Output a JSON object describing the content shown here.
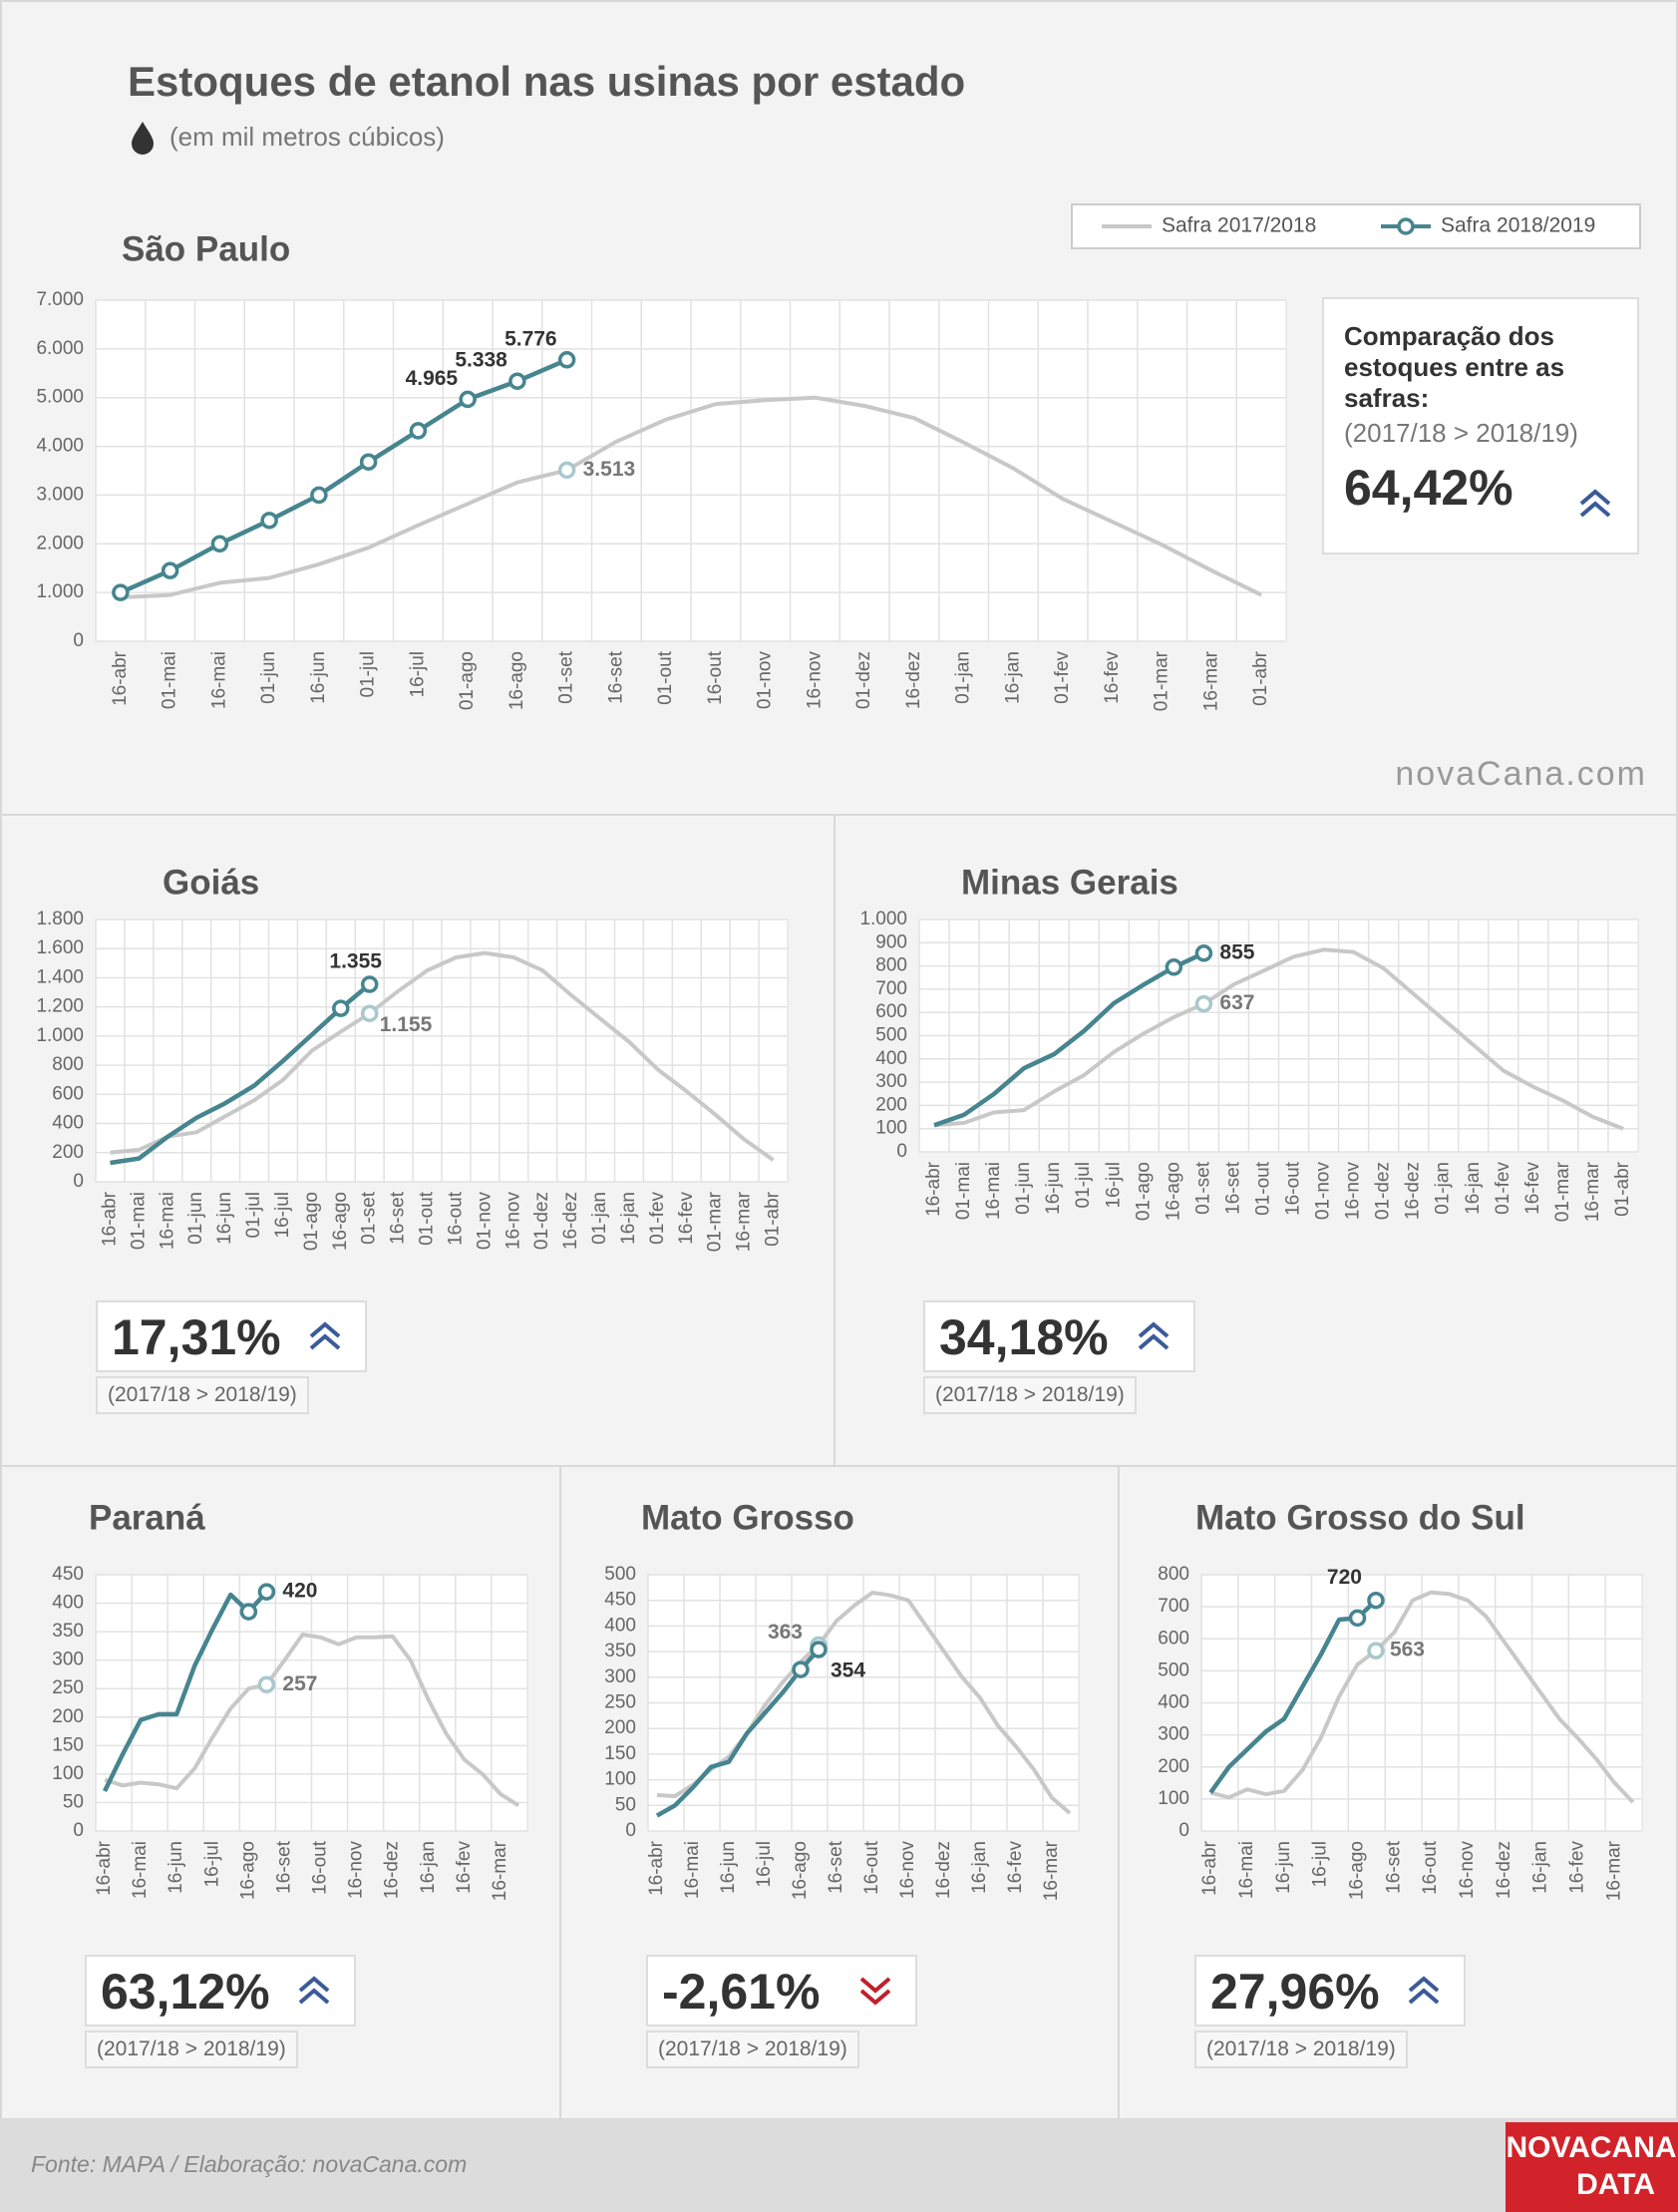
{
  "header": {
    "title": "Estoques de etanol nas usinas por estado",
    "subtitle": "(em mil metros cúbicos)"
  },
  "watermark": "novaCana.com",
  "footer": {
    "source": "Fonte: MAPA  / Elaboração: novaCana.com",
    "logo_top": "NOVACANA",
    "logo_bottom": "DATA"
  },
  "chart_data": [
    {
      "type": "line",
      "title": "São Paulo",
      "legend": "top-right",
      "grid": true,
      "categories": [
        "16-abr",
        "01-mai",
        "16-mai",
        "01-jun",
        "16-jun",
        "01-jul",
        "16-jul",
        "01-ago",
        "16-ago",
        "01-set",
        "16-set",
        "01-out",
        "16-out",
        "01-nov",
        "16-nov",
        "01-dez",
        "16-dez",
        "01-jan",
        "16-jan",
        "01-fev",
        "16-fev",
        "01-mar",
        "16-mar",
        "01-abr"
      ],
      "series": [
        {
          "name": "Safra 2017/2018",
          "color": "#c8c8c8",
          "markers": "labeled",
          "values": [
            900,
            950,
            1200,
            1300,
            1580,
            1920,
            2380,
            2820,
            3260,
            3513,
            4100,
            4550,
            4870,
            4950,
            5000,
            4830,
            4580,
            4080,
            3550,
            2920,
            2450,
            1980,
            1450,
            950
          ],
          "value_labels": [
            null,
            null,
            null,
            null,
            null,
            null,
            null,
            null,
            null,
            "3.513",
            null,
            null,
            null,
            null,
            null,
            null,
            null,
            null,
            null,
            null,
            null,
            null,
            null,
            null
          ]
        },
        {
          "name": "Safra 2018/2019",
          "color": "#46858f",
          "markers": "all",
          "values": [
            1000,
            1450,
            2000,
            2480,
            3000,
            3680,
            4320,
            4965,
            5338,
            5776,
            null,
            null,
            null,
            null,
            null,
            null,
            null,
            null,
            null,
            null,
            null,
            null,
            null,
            null
          ],
          "value_labels": [
            null,
            null,
            null,
            null,
            null,
            null,
            null,
            "4.965",
            "5.338",
            "5.776",
            null,
            null,
            null,
            null,
            null,
            null,
            null,
            null,
            null,
            null,
            null,
            null,
            null,
            null
          ]
        }
      ],
      "ylim": [
        0,
        7000
      ],
      "yticks": [
        0,
        {
          "value": 1000,
          "label": "1.000"
        },
        {
          "value": 2000,
          "label": "2.000"
        },
        {
          "value": 3000,
          "label": "3.000"
        },
        {
          "value": 4000,
          "label": "4.000"
        },
        {
          "value": 5000,
          "label": "5.000"
        },
        {
          "value": 6000,
          "label": "6.000"
        },
        {
          "value": 7000,
          "label": "7.000"
        }
      ],
      "comparison": {
        "heading": "Comparação dos estoques entre as safras:",
        "note": "(2017/18 > 2018/19)",
        "value": "64,42%",
        "trend": "up"
      }
    },
    {
      "type": "line",
      "title": "Goiás",
      "grid": true,
      "categories": [
        "16-abr",
        "01-mai",
        "16-mai",
        "01-jun",
        "16-jun",
        "01-jul",
        "16-jul",
        "01-ago",
        "16-ago",
        "01-set",
        "16-set",
        "01-out",
        "16-out",
        "01-nov",
        "16-nov",
        "01-dez",
        "16-dez",
        "01-jan",
        "16-jan",
        "01-fev",
        "16-fev",
        "01-mar",
        "16-mar",
        "01-abr"
      ],
      "series": [
        {
          "color": "#c8c8c8",
          "markers": "labeled",
          "values": [
            200,
            220,
            310,
            340,
            450,
            560,
            700,
            900,
            1030,
            1155,
            1310,
            1450,
            1540,
            1570,
            1540,
            1450,
            1280,
            1120,
            960,
            770,
            620,
            460,
            290,
            150
          ],
          "value_labels": [
            null,
            null,
            null,
            null,
            null,
            null,
            null,
            null,
            null,
            "1.155",
            null,
            null,
            null,
            null,
            null,
            null,
            null,
            null,
            null,
            null,
            null,
            null,
            null,
            null
          ]
        },
        {
          "color": "#46858f",
          "markers": "tail",
          "values": [
            130,
            160,
            310,
            440,
            540,
            660,
            830,
            1010,
            1190,
            1355,
            null,
            null,
            null,
            null,
            null,
            null,
            null,
            null,
            null,
            null,
            null,
            null,
            null,
            null
          ],
          "value_labels": [
            null,
            null,
            null,
            null,
            null,
            null,
            null,
            null,
            null,
            "1.355",
            null,
            null,
            null,
            null,
            null,
            null,
            null,
            null,
            null,
            null,
            null,
            null,
            null,
            null
          ]
        }
      ],
      "ylim": [
        0,
        1800
      ],
      "yticks": [
        0,
        200,
        400,
        600,
        800,
        {
          "value": 1000,
          "label": "1.000"
        },
        {
          "value": 1200,
          "label": "1.200"
        },
        {
          "value": 1400,
          "label": "1.400"
        },
        {
          "value": 1600,
          "label": "1.600"
        },
        {
          "value": 1800,
          "label": "1.800"
        }
      ],
      "comparison": {
        "note": "(2017/18 > 2018/19)",
        "value": "17,31%",
        "trend": "up"
      }
    },
    {
      "type": "line",
      "title": "Minas Gerais",
      "grid": true,
      "categories": [
        "16-abr",
        "01-mai",
        "16-mai",
        "01-jun",
        "16-jun",
        "01-jul",
        "16-jul",
        "01-ago",
        "16-ago",
        "01-set",
        "16-set",
        "01-out",
        "16-out",
        "01-nov",
        "16-nov",
        "01-dez",
        "16-dez",
        "01-jan",
        "16-jan",
        "01-fev",
        "16-fev",
        "01-mar",
        "16-mar",
        "01-abr"
      ],
      "series": [
        {
          "color": "#c8c8c8",
          "markers": "labeled",
          "values": [
            115,
            125,
            170,
            180,
            260,
            330,
            430,
            510,
            580,
            637,
            720,
            780,
            840,
            870,
            860,
            790,
            680,
            570,
            460,
            350,
            280,
            220,
            150,
            100
          ],
          "value_labels": [
            null,
            null,
            null,
            null,
            null,
            null,
            null,
            null,
            null,
            "637",
            null,
            null,
            null,
            null,
            null,
            null,
            null,
            null,
            null,
            null,
            null,
            null,
            null,
            null
          ]
        },
        {
          "color": "#46858f",
          "markers": "tail",
          "values": [
            115,
            160,
            250,
            360,
            420,
            520,
            640,
            720,
            795,
            855,
            null,
            null,
            null,
            null,
            null,
            null,
            null,
            null,
            null,
            null,
            null,
            null,
            null,
            null
          ],
          "value_labels": [
            null,
            null,
            null,
            null,
            null,
            null,
            null,
            null,
            null,
            "855",
            null,
            null,
            null,
            null,
            null,
            null,
            null,
            null,
            null,
            null,
            null,
            null,
            null,
            null
          ]
        }
      ],
      "ylim": [
        0,
        1000
      ],
      "yticks": [
        0,
        100,
        200,
        300,
        400,
        500,
        600,
        700,
        800,
        900,
        {
          "value": 1000,
          "label": "1.000"
        }
      ],
      "comparison": {
        "note": "(2017/18 > 2018/19)",
        "value": "34,18%",
        "trend": "up"
      }
    },
    {
      "type": "line",
      "title": "Paraná",
      "grid": true,
      "categories": [
        "16-abr",
        null,
        "16-mai",
        null,
        "16-jun",
        null,
        "16-jul",
        null,
        "16-ago",
        null,
        "16-set",
        null,
        "16-out",
        null,
        "16-nov",
        null,
        "16-dez",
        null,
        "16-jan",
        null,
        "16-fev",
        null,
        "16-mar",
        null
      ],
      "series": [
        {
          "color": "#c8c8c8",
          "markers": "labeled",
          "values": [
            90,
            80,
            85,
            82,
            75,
            110,
            165,
            215,
            250,
            257,
            300,
            345,
            340,
            328,
            340,
            340,
            342,
            300,
            230,
            170,
            125,
            100,
            65,
            45
          ],
          "value_labels": [
            null,
            null,
            null,
            null,
            null,
            null,
            null,
            null,
            null,
            "257",
            null,
            null,
            null,
            null,
            null,
            null,
            null,
            null,
            null,
            null,
            null,
            null,
            null,
            null
          ]
        },
        {
          "color": "#46858f",
          "markers": "tail",
          "values": [
            70,
            135,
            195,
            205,
            205,
            290,
            355,
            415,
            385,
            420,
            null,
            null,
            null,
            null,
            null,
            null,
            null,
            null,
            null,
            null,
            null,
            null,
            null,
            null
          ],
          "value_labels": [
            null,
            null,
            null,
            null,
            null,
            null,
            null,
            null,
            null,
            "420",
            null,
            null,
            null,
            null,
            null,
            null,
            null,
            null,
            null,
            null,
            null,
            null,
            null,
            null
          ]
        }
      ],
      "ylim": [
        0,
        450
      ],
      "yticks": [
        0,
        50,
        100,
        150,
        200,
        250,
        300,
        350,
        400,
        450
      ],
      "comparison": {
        "note": "(2017/18 > 2018/19)",
        "value": "63,12%",
        "trend": "up"
      }
    },
    {
      "type": "line",
      "title": "Mato Grosso",
      "grid": true,
      "categories": [
        "16-abr",
        null,
        "16-mai",
        null,
        "16-jun",
        null,
        "16-jul",
        null,
        "16-ago",
        null,
        "16-set",
        null,
        "16-out",
        null,
        "16-nov",
        null,
        "16-dez",
        null,
        "16-jan",
        null,
        "16-fev",
        null,
        "16-mar",
        null
      ],
      "series": [
        {
          "color": "#c8c8c8",
          "markers": "labeled",
          "values": [
            70,
            68,
            90,
            120,
            145,
            190,
            245,
            290,
            330,
            363,
            410,
            440,
            465,
            460,
            450,
            400,
            350,
            300,
            260,
            205,
            165,
            120,
            65,
            35
          ],
          "value_labels": [
            null,
            null,
            null,
            null,
            null,
            null,
            null,
            null,
            null,
            "363",
            null,
            null,
            null,
            null,
            null,
            null,
            null,
            null,
            null,
            null,
            null,
            null,
            null,
            null
          ]
        },
        {
          "color": "#46858f",
          "markers": "tail",
          "values": [
            30,
            50,
            85,
            125,
            135,
            190,
            230,
            270,
            315,
            354,
            null,
            null,
            null,
            null,
            null,
            null,
            null,
            null,
            null,
            null,
            null,
            null,
            null,
            null
          ],
          "value_labels": [
            null,
            null,
            null,
            null,
            null,
            null,
            null,
            null,
            null,
            "354",
            null,
            null,
            null,
            null,
            null,
            null,
            null,
            null,
            null,
            null,
            null,
            null,
            null,
            null
          ]
        }
      ],
      "ylim": [
        0,
        500
      ],
      "yticks": [
        0,
        50,
        100,
        150,
        200,
        250,
        300,
        350,
        400,
        450,
        500
      ],
      "comparison": {
        "note": "(2017/18 > 2018/19)",
        "value": "-2,61%",
        "trend": "down"
      }
    },
    {
      "type": "line",
      "title": "Mato Grosso do Sul",
      "grid": true,
      "categories": [
        "16-abr",
        null,
        "16-mai",
        null,
        "16-jun",
        null,
        "16-jul",
        null,
        "16-ago",
        null,
        "16-set",
        null,
        "16-out",
        null,
        "16-nov",
        null,
        "16-dez",
        null,
        "16-jan",
        null,
        "16-fev",
        null,
        "16-mar",
        null
      ],
      "series": [
        {
          "color": "#c8c8c8",
          "markers": "labeled",
          "values": [
            120,
            105,
            130,
            115,
            125,
            190,
            290,
            420,
            520,
            563,
            620,
            720,
            745,
            740,
            720,
            670,
            590,
            510,
            430,
            350,
            290,
            225,
            150,
            90
          ],
          "value_labels": [
            null,
            null,
            null,
            null,
            null,
            null,
            null,
            null,
            null,
            "563",
            null,
            null,
            null,
            null,
            null,
            null,
            null,
            null,
            null,
            null,
            null,
            null,
            null,
            null
          ]
        },
        {
          "color": "#46858f",
          "markers": "tail",
          "values": [
            120,
            200,
            255,
            310,
            350,
            450,
            550,
            660,
            665,
            720,
            null,
            null,
            null,
            null,
            null,
            null,
            null,
            null,
            null,
            null,
            null,
            null,
            null,
            null
          ],
          "value_labels": [
            null,
            null,
            null,
            null,
            null,
            null,
            null,
            null,
            null,
            "720",
            null,
            null,
            null,
            null,
            null,
            null,
            null,
            null,
            null,
            null,
            null,
            null,
            null,
            null
          ]
        }
      ],
      "ylim": [
        0,
        800
      ],
      "yticks": [
        0,
        100,
        200,
        300,
        400,
        500,
        600,
        700,
        800
      ],
      "comparison": {
        "note": "(2017/18 > 2018/19)",
        "value": "27,96%",
        "trend": "up"
      }
    }
  ]
}
